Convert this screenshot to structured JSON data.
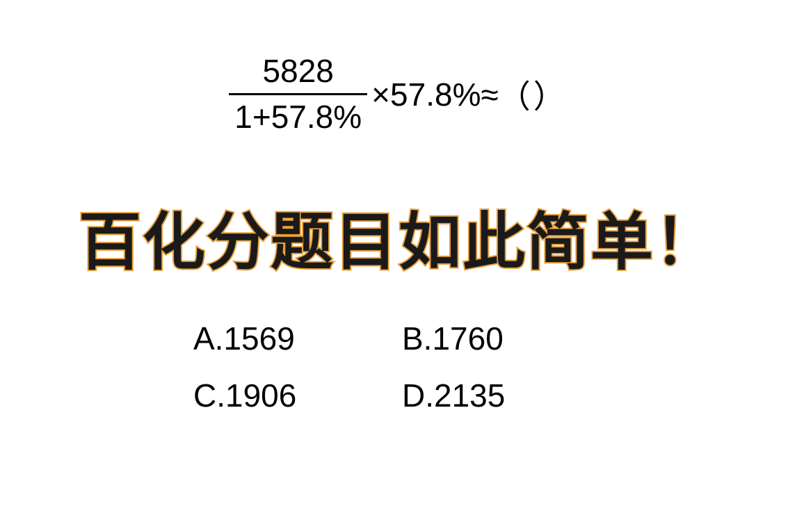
{
  "equation": {
    "numerator": "5828",
    "denominator": "1+57.8%",
    "multiplier": "×57.8%≈",
    "blank": "（）"
  },
  "headline": "百化分题目如此简单！",
  "options": {
    "a": "A.1569",
    "b": "B.1760",
    "c": "C.1906",
    "d": "D.2135"
  },
  "styling": {
    "background_color": "#ffffff",
    "equation_font_size": 46,
    "equation_color": "#000000",
    "headline_font_size": 90,
    "headline_fill_color": "#1a1a1a",
    "headline_stroke_color": "#e8a13c",
    "headline_stroke_width": 4,
    "option_font_size": 46,
    "option_color": "#000000",
    "fraction_bar_color": "#000000",
    "fraction_bar_height": 3
  }
}
